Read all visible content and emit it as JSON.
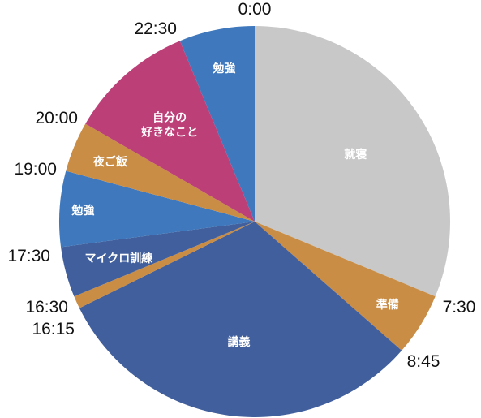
{
  "chart_data": {
    "type": "pie",
    "title": "",
    "unit": "hours",
    "slices": [
      {
        "label": "就寝",
        "start": "0:00",
        "end": "7:30",
        "hours": 7.5,
        "color": "#c8c8c8",
        "label_color": "#222222"
      },
      {
        "label": "準備",
        "start": "7:30",
        "end": "8:45",
        "hours": 1.25,
        "color": "#c98d45",
        "label_color": "#ffffff"
      },
      {
        "label": "講義",
        "start": "8:45",
        "end": "16:15",
        "hours": 7.5,
        "color": "#415f9c",
        "label_color": "#ffffff"
      },
      {
        "label": "",
        "start": "16:15",
        "end": "16:30",
        "hours": 0.25,
        "color": "#c98d45",
        "label_color": "#ffffff"
      },
      {
        "label": "マイクロ訓練",
        "start": "16:30",
        "end": "17:30",
        "hours": 1.0,
        "color": "#415f9c",
        "label_color": "#ffffff"
      },
      {
        "label": "勉強",
        "start": "17:30",
        "end": "19:00",
        "hours": 1.5,
        "color": "#3f78bc",
        "label_color": "#ffffff"
      },
      {
        "label": "夜ご飯",
        "start": "19:00",
        "end": "20:00",
        "hours": 1.0,
        "color": "#c98d45",
        "label_color": "#ffffff"
      },
      {
        "label": "自分の\n好きなこと",
        "start": "20:00",
        "end": "22:30",
        "hours": 2.5,
        "color": "#bd3f78",
        "label_color": "#ffffff"
      },
      {
        "label": "勉強",
        "start": "22:30",
        "end": "0:00",
        "hours": 1.5,
        "color": "#3f78bc",
        "label_color": "#ffffff"
      }
    ],
    "time_labels": [
      "0:00",
      "7:30",
      "8:45",
      "16:15",
      "16:30",
      "17:30",
      "19:00",
      "20:00",
      "22:30"
    ]
  }
}
